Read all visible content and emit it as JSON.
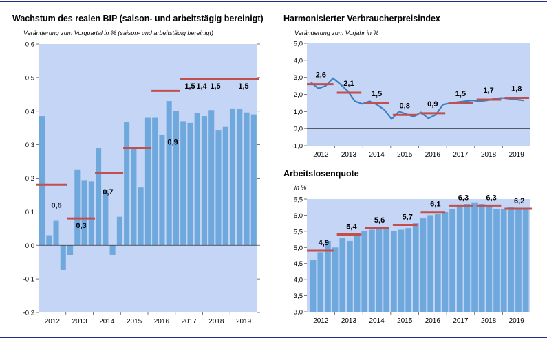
{
  "colors": {
    "plot_bg": "#c5d5f5",
    "bar": "#6fa8dc",
    "line": "#3d7fc2",
    "avg": "#c0504d",
    "rule": "#1f2d8a"
  },
  "chart_data": [
    {
      "type": "bar",
      "title": "Wachstum des realen BIP (saison- und arbeitstägig bereinigt)",
      "ylabel": "Veränderung zum Vorquartal in % (saison- und arbeitstägig bereinigt)",
      "ylim": [
        -0.2,
        0.6
      ],
      "yticks": [
        "0,6",
        "0,5",
        "0,4",
        "0,3",
        "0,2",
        "0,1",
        "0,0",
        "-0,1",
        "-0,2"
      ],
      "years": [
        "2012",
        "2013",
        "2014",
        "2015",
        "2016",
        "2017",
        "2018",
        "2019"
      ],
      "values": [
        0.385,
        0.03,
        0.073,
        -0.073,
        -0.03,
        0.226,
        0.194,
        0.19,
        0.29,
        0.165,
        -0.028,
        0.085,
        0.368,
        0.29,
        0.172,
        0.38,
        0.38,
        0.33,
        0.43,
        0.4,
        0.37,
        0.365,
        0.395,
        0.385,
        0.403,
        0.342,
        0.353,
        0.408,
        0.407,
        0.396,
        0.39
      ],
      "averages": [
        {
          "value": 0.18,
          "from": 0,
          "to": 4,
          "label": "0,6"
        },
        {
          "value": 0.08,
          "from": 4,
          "to": 8,
          "label": "0,3"
        },
        {
          "value": 0.215,
          "from": 8,
          "to": 12,
          "label": "0,7"
        },
        {
          "value": 0.29,
          "from": 12,
          "to": 16,
          "label": "0,9"
        },
        {
          "value": 0.46,
          "from": 16,
          "to": 20,
          "label": "1,4"
        },
        {
          "value": 0.495,
          "from": 20,
          "to": 31,
          "labels": [
            "1,5",
            "1,5",
            "1,5"
          ]
        }
      ]
    },
    {
      "type": "line",
      "title": "Harmonisierter Verbraucherpreisindex",
      "ylabel": "Veränderung zum Vorjahr in %",
      "ylim": [
        -1.0,
        5.0
      ],
      "yticks": [
        "5,0",
        "4,0",
        "3,0",
        "2,0",
        "1,0",
        "0,0",
        "-1,0"
      ],
      "years": [
        "2012",
        "2013",
        "2014",
        "2015",
        "2016",
        "2017",
        "2018",
        "2019"
      ],
      "values": [
        2.7,
        2.35,
        2.5,
        2.95,
        2.6,
        2.2,
        1.6,
        1.45,
        1.6,
        1.4,
        1.1,
        0.55,
        1.0,
        0.85,
        0.7,
        0.95,
        0.6,
        0.8,
        1.4,
        1.5,
        1.55,
        1.6,
        1.65,
        1.6,
        1.65,
        1.75,
        1.8,
        1.75,
        1.7,
        1.65
      ],
      "averages": [
        {
          "value": 2.6,
          "label": "2,6"
        },
        {
          "value": 2.1,
          "label": "2,1"
        },
        {
          "value": 1.5,
          "label": "1,5"
        },
        {
          "value": 0.8,
          "label": "0,8"
        },
        {
          "value": 0.9,
          "label": "0,9"
        },
        {
          "value": 1.5,
          "label": "1,5"
        },
        {
          "value": 1.7,
          "label": "1,7"
        },
        {
          "value": 1.8,
          "label": "1,8"
        }
      ]
    },
    {
      "type": "bar",
      "title": "Arbeitslosenquote",
      "ylabel": "in %",
      "ylim": [
        3.0,
        6.5
      ],
      "yticks": [
        "6,5",
        "6,0",
        "5,5",
        "5,0",
        "4,5",
        "4,0",
        "3,5",
        "3,0"
      ],
      "years": [
        "2012",
        "2013",
        "2014",
        "2015",
        "2016",
        "2017",
        "2018",
        "2019"
      ],
      "values": [
        4.6,
        4.85,
        5.2,
        5.0,
        5.3,
        5.2,
        5.4,
        5.5,
        5.55,
        5.6,
        5.6,
        5.5,
        5.55,
        5.6,
        5.75,
        5.9,
        6.0,
        6.05,
        6.1,
        6.2,
        6.3,
        6.35,
        6.4,
        6.35,
        6.3,
        6.2,
        6.2,
        6.25,
        6.2,
        6.2
      ],
      "averages": [
        {
          "value": 4.9,
          "label": "4,9"
        },
        {
          "value": 5.4,
          "label": "5,4"
        },
        {
          "value": 5.6,
          "label": "5,6"
        },
        {
          "value": 5.7,
          "label": "5,7"
        },
        {
          "value": 6.1,
          "label": "6,1"
        },
        {
          "value": 6.3,
          "label": "6,3"
        },
        {
          "value": 6.3,
          "label": "6,3"
        },
        {
          "value": 6.2,
          "label": "6,2"
        }
      ]
    }
  ]
}
